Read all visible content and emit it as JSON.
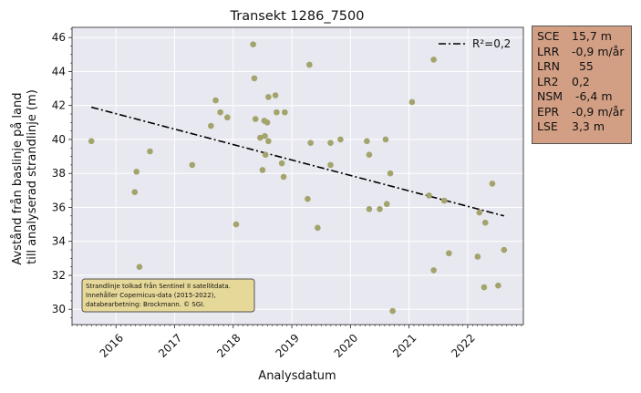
{
  "chart_data": {
    "type": "scatter",
    "title": "Transekt 1286_7500",
    "xlabel": "Analysdatum",
    "ylabel": [
      "Avstånd från baslinje på land",
      "till analyserad strandlinje (m)"
    ],
    "xlim": [
      2015.25,
      2022.95
    ],
    "ylim": [
      29.1,
      46.6
    ],
    "x_ticks": [
      {
        "label": "2016",
        "value": 2016.0
      },
      {
        "label": "2017",
        "value": 2017.0
      },
      {
        "label": "2018",
        "value": 2018.0
      },
      {
        "label": "2019",
        "value": 2019.0
      },
      {
        "label": "2020",
        "value": 2020.0
      },
      {
        "label": "2021",
        "value": 2021.0
      },
      {
        "label": "2022",
        "value": 2022.0
      }
    ],
    "y_ticks": [
      30,
      32,
      34,
      36,
      38,
      40,
      42,
      44,
      46
    ],
    "grid": true,
    "point_color": "#a3a36c",
    "background_color": "#e8e8f0",
    "points": [
      {
        "x": 2015.58,
        "y": 39.9
      },
      {
        "x": 2016.32,
        "y": 36.9
      },
      {
        "x": 2016.35,
        "y": 38.1
      },
      {
        "x": 2016.4,
        "y": 32.5
      },
      {
        "x": 2016.58,
        "y": 39.3
      },
      {
        "x": 2017.3,
        "y": 38.5
      },
      {
        "x": 2017.62,
        "y": 40.8
      },
      {
        "x": 2017.7,
        "y": 42.3
      },
      {
        "x": 2017.78,
        "y": 41.6
      },
      {
        "x": 2017.9,
        "y": 41.3
      },
      {
        "x": 2018.05,
        "y": 35.0
      },
      {
        "x": 2018.34,
        "y": 45.6
      },
      {
        "x": 2018.36,
        "y": 43.6
      },
      {
        "x": 2018.38,
        "y": 41.2
      },
      {
        "x": 2018.46,
        "y": 40.1
      },
      {
        "x": 2018.5,
        "y": 38.2
      },
      {
        "x": 2018.53,
        "y": 41.1
      },
      {
        "x": 2018.54,
        "y": 40.2
      },
      {
        "x": 2018.55,
        "y": 39.1
      },
      {
        "x": 2018.58,
        "y": 41.0
      },
      {
        "x": 2018.6,
        "y": 42.5
      },
      {
        "x": 2018.6,
        "y": 39.9
      },
      {
        "x": 2018.72,
        "y": 42.6
      },
      {
        "x": 2018.74,
        "y": 41.6
      },
      {
        "x": 2018.83,
        "y": 38.6
      },
      {
        "x": 2018.86,
        "y": 37.8
      },
      {
        "x": 2018.88,
        "y": 41.6
      },
      {
        "x": 2019.27,
        "y": 36.5
      },
      {
        "x": 2019.3,
        "y": 44.4
      },
      {
        "x": 2019.32,
        "y": 39.8
      },
      {
        "x": 2019.44,
        "y": 34.8
      },
      {
        "x": 2019.66,
        "y": 39.8
      },
      {
        "x": 2019.66,
        "y": 38.5
      },
      {
        "x": 2019.83,
        "y": 40.0
      },
      {
        "x": 2020.28,
        "y": 39.9
      },
      {
        "x": 2020.32,
        "y": 39.1
      },
      {
        "x": 2020.32,
        "y": 35.9
      },
      {
        "x": 2020.5,
        "y": 35.9
      },
      {
        "x": 2020.6,
        "y": 40.0
      },
      {
        "x": 2020.62,
        "y": 36.2
      },
      {
        "x": 2020.68,
        "y": 38.0
      },
      {
        "x": 2020.72,
        "y": 29.9
      },
      {
        "x": 2021.05,
        "y": 42.2
      },
      {
        "x": 2021.34,
        "y": 36.7
      },
      {
        "x": 2021.42,
        "y": 44.7
      },
      {
        "x": 2021.42,
        "y": 32.3
      },
      {
        "x": 2021.6,
        "y": 36.4
      },
      {
        "x": 2021.68,
        "y": 33.3
      },
      {
        "x": 2022.17,
        "y": 33.1
      },
      {
        "x": 2022.2,
        "y": 35.7
      },
      {
        "x": 2022.28,
        "y": 31.3
      },
      {
        "x": 2022.3,
        "y": 35.1
      },
      {
        "x": 2022.42,
        "y": 37.4
      },
      {
        "x": 2022.52,
        "y": 31.4
      },
      {
        "x": 2022.62,
        "y": 33.5
      }
    ],
    "trendline": {
      "label": "R²=0,2",
      "style": "dash-dot",
      "color": "#000000",
      "x": [
        2015.58,
        2022.62
      ],
      "y": [
        41.9,
        35.5
      ]
    },
    "legend_placement": "top-right",
    "annotation": {
      "lines": [
        "Strandlinje tolkad från Sentinel II satellitdata.",
        "Innehåller Copernicus-data (2015-2022),",
        "databearbetning: Brockmann. © SGI."
      ],
      "placement": "bottom-left",
      "background": "#e6d898"
    }
  },
  "stats": [
    {
      "key": "SCE",
      "value": "15,7 m"
    },
    {
      "key": "LRR",
      "value": "-0,9 m/år"
    },
    {
      "key": "LRN",
      "value": "  55"
    },
    {
      "key": "LR2",
      "value": "0,2"
    },
    {
      "key": "NSM",
      "value": " -6,4 m"
    },
    {
      "key": "EPR",
      "value": "-0,9 m/år"
    },
    {
      "key": "LSE",
      "value": "3,3 m"
    }
  ]
}
